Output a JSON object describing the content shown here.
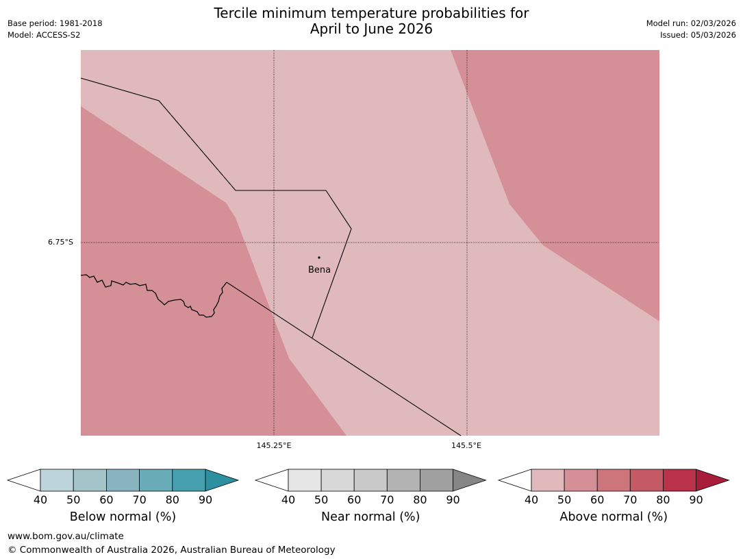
{
  "title_line1": "Tercile minimum temperature probabilities for",
  "title_line2": "April to June 2026",
  "meta_left": [
    "Base period: 1981-2018",
    "Model: ACCESS-S2"
  ],
  "meta_right": [
    "Model run: 02/03/2026",
    "Issued: 05/03/2026"
  ],
  "map": {
    "lat_label": "6.75°S",
    "lon_labels": [
      "145.25°E",
      "145.5°E"
    ],
    "place": "Bena",
    "colors": {
      "above_40_50": "#e0b9bd",
      "above_50_60": "#d59097"
    }
  },
  "colorbars": [
    {
      "name": "below",
      "title": "Below normal (%)",
      "ticks": [
        "40",
        "50",
        "60",
        "70",
        "80",
        "90"
      ],
      "colors": [
        "#bdd5da",
        "#a3c5ca",
        "#87b4bf",
        "#6aabb8",
        "#46a0ae"
      ],
      "arrow_color": "#2e8fa0"
    },
    {
      "name": "near",
      "title": "Near normal (%)",
      "ticks": [
        "40",
        "50",
        "60",
        "70",
        "80",
        "90"
      ],
      "colors": [
        "#e6e6e6",
        "#d8d8d8",
        "#c9c9c9",
        "#b3b3b3",
        "#a0a0a0"
      ],
      "arrow_color": "#858585"
    },
    {
      "name": "above",
      "title": "Above normal (%)",
      "ticks": [
        "40",
        "50",
        "60",
        "70",
        "80",
        "90"
      ],
      "colors": [
        "#e0b9bd",
        "#d59097",
        "#cc767c",
        "#c45a66",
        "#ba3249"
      ],
      "arrow_color": "#a81d3b"
    }
  ],
  "footer": [
    "www.bom.gov.au/climate",
    "© Commonwealth of Australia 2026, Australian Bureau of Meteorology"
  ]
}
